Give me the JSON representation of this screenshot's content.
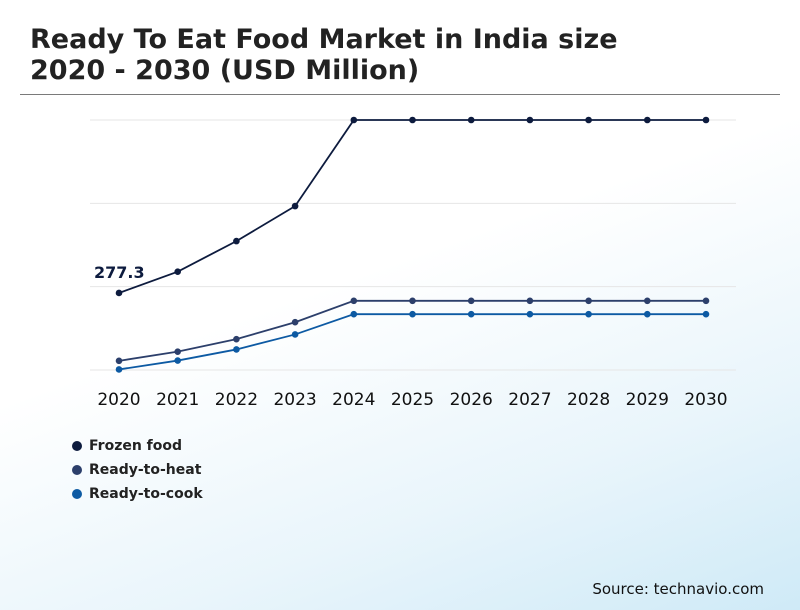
{
  "page": {
    "title_line1": "Ready To Eat Food Market in India size",
    "title_line2": "2020 - 2030 (USD Million)",
    "source": "Source: technavio.com"
  },
  "chart_data": {
    "type": "line",
    "title": "Ready To Eat Food Market in India size 2020 - 2030 (USD Million)",
    "xlabel": "",
    "ylabel": "",
    "categories": [
      "2020",
      "2021",
      "2022",
      "2023",
      "2024",
      "2025",
      "2026",
      "2027",
      "2028",
      "2029",
      "2030"
    ],
    "ylim": [
      0,
      900
    ],
    "grid": true,
    "legend_position": "bottom-left",
    "series": [
      {
        "name": "Frozen food",
        "color": "#0d1b3e",
        "values": [
          277.3,
          354,
          464,
          590,
          900,
          900,
          900,
          900,
          900,
          900,
          900
        ]
      },
      {
        "name": "Ready-to-heat",
        "color": "#2c3f6b",
        "values": [
          33,
          66,
          111,
          172,
          249,
          249,
          249,
          249,
          249,
          249,
          249
        ]
      },
      {
        "name": "Ready-to-cook",
        "color": "#0d5aa3",
        "values": [
          2,
          34,
          74,
          128,
          201,
          201,
          201,
          201,
          201,
          201,
          201
        ]
      }
    ],
    "annotations": [
      {
        "series": 0,
        "index": 0,
        "label": "277.3"
      }
    ]
  }
}
